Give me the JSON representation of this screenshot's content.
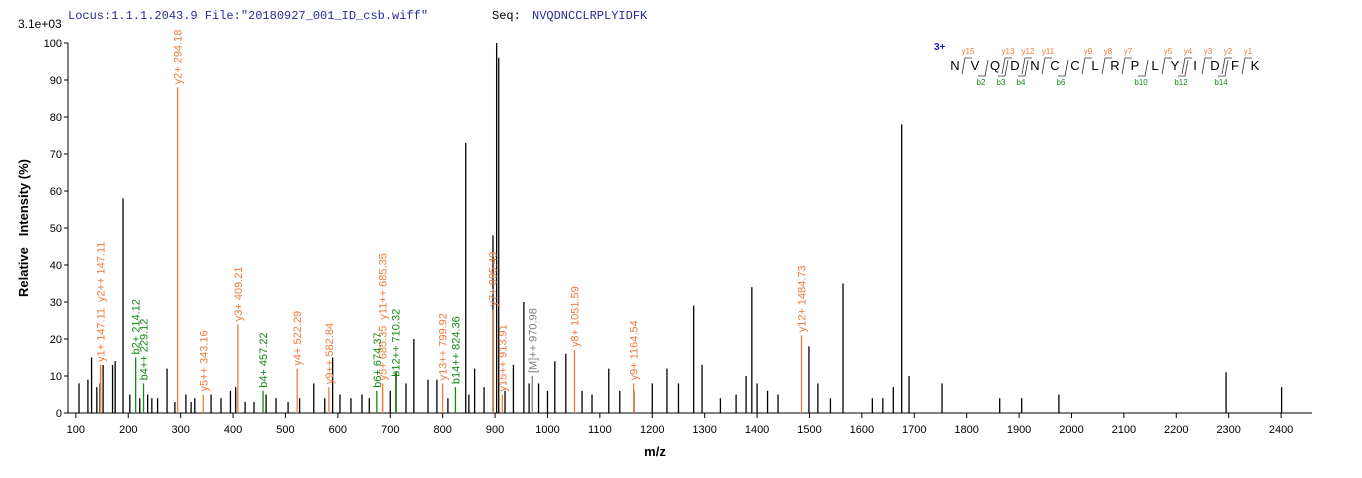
{
  "header": {
    "locus": "Locus:1.1.1.2043.9 File:\"20180927_001_ID_csb.wiff\"",
    "seq_label": "Seq:",
    "sequence": "NVQDNCCLRPLYIDFK"
  },
  "fragment_map": {
    "charge": "3+",
    "residues": [
      "N",
      "V",
      "Q",
      "D",
      "N",
      "C",
      "C",
      "L",
      "R",
      "P",
      "L",
      "Y",
      "I",
      "D",
      "F",
      "K"
    ],
    "y_labels": [
      "y15",
      null,
      "y13",
      "y12",
      "y11",
      null,
      "y9",
      "y8",
      "y7",
      null,
      "y5",
      "y4",
      "y3",
      "y2",
      "y1"
    ],
    "b_labels": [
      null,
      "b2",
      "b3",
      "b4",
      null,
      "b6",
      null,
      null,
      null,
      "b10",
      null,
      "b12",
      null,
      "b14",
      null
    ]
  },
  "chart_data": {
    "type": "stem",
    "scale_label": "3.1e+03",
    "x_label": "m/z",
    "y_label": "Relative   Intensity (%)",
    "xlim": [
      85,
      2459
    ],
    "ylim": [
      0,
      100
    ],
    "xticks": [
      100,
      200,
      300,
      400,
      500,
      600,
      700,
      800,
      900,
      1000,
      1100,
      1200,
      1300,
      1400,
      1500,
      1600,
      1700,
      1800,
      1900,
      2000,
      2100,
      2200,
      2300,
      2400
    ],
    "yticks": [
      0,
      10,
      20,
      30,
      40,
      50,
      60,
      70,
      80,
      90,
      100
    ],
    "series": [
      {
        "color": "#000000",
        "x": [
          106,
          123,
          130,
          140,
          146,
          152,
          170,
          175,
          190,
          203,
          222,
          237,
          245,
          256,
          274,
          289,
          310,
          320,
          327,
          358,
          377,
          395,
          405,
          423,
          440,
          463,
          482,
          505,
          527,
          554,
          575,
          590,
          604,
          625,
          646,
          660,
          700,
          711,
          730,
          745,
          772,
          789,
          810,
          844,
          850,
          861,
          879,
          896,
          903,
          907,
          919,
          935,
          955,
          965,
          983,
          1000,
          1014,
          1035,
          1066,
          1085,
          1117,
          1138,
          1165,
          1200,
          1228,
          1250,
          1279,
          1295,
          1330,
          1360,
          1379,
          1390,
          1400,
          1420,
          1440,
          1499,
          1516,
          1540,
          1564,
          1620,
          1640,
          1660,
          1676,
          1690,
          1753,
          1863,
          1905,
          1976,
          2295,
          2401
        ],
        "values": [
          8,
          9,
          15,
          7,
          8,
          13,
          13,
          14,
          58,
          5,
          4,
          5,
          4,
          4,
          12,
          3,
          5,
          3,
          4,
          5,
          4,
          6,
          7,
          3,
          3,
          5,
          4,
          3,
          4,
          8,
          4,
          15,
          5,
          4,
          5,
          4,
          6,
          11,
          8,
          20,
          9,
          9,
          4,
          73,
          5,
          12,
          7,
          48,
          100,
          96,
          6,
          13,
          30,
          8,
          8,
          6,
          14,
          16,
          6,
          5,
          12,
          6,
          6,
          8,
          12,
          8,
          29,
          13,
          4,
          5,
          10,
          34,
          8,
          6,
          5,
          18,
          8,
          4,
          35,
          4,
          4,
          7,
          78,
          10,
          8,
          4,
          4,
          5,
          11,
          7
        ]
      },
      {
        "color": "#f07c3c",
        "x": [
          147.11,
          147.11,
          294.18,
          343.16,
          409.21,
          522.29,
          582.84,
          685.35,
          685.35,
          799.92,
          895.49,
          913.91,
          1051.59,
          1164.54,
          1484.73
        ],
        "values": [
          13,
          13,
          88,
          5,
          24,
          12,
          7,
          8,
          8,
          8,
          28,
          5,
          17,
          8,
          21
        ],
        "labels": [
          "y1+ 147.11",
          "y2++ 147.11",
          "y2+ 294.18",
          "y5++ 343.16",
          "y3+ 409.21",
          "y4+ 522.29",
          "y9++ 582.84",
          "y5+ 685.35",
          "y11++ 685.35",
          "y13++ 799.92",
          "y7+ 895.49",
          "y15++ 913.91",
          "y8+ 1051.59",
          "y9+ 1164.54",
          "y12+ 1484.73"
        ]
      },
      {
        "color": "#138a13",
        "x": [
          214.12,
          229.12,
          457.22,
          674.37,
          710.32,
          824.36
        ],
        "values": [
          15,
          8,
          6,
          6,
          9,
          7
        ],
        "labels": [
          "b2+ 214.12",
          "b4++ 229.12",
          "b4+ 457.22",
          "b6+ 674.37",
          "b12++ 710.32",
          "b14++ 824.36"
        ]
      },
      {
        "color": "#808080",
        "x": [
          970.98
        ],
        "values": [
          10
        ],
        "labels": [
          "[M]++ 970.98"
        ]
      }
    ]
  }
}
